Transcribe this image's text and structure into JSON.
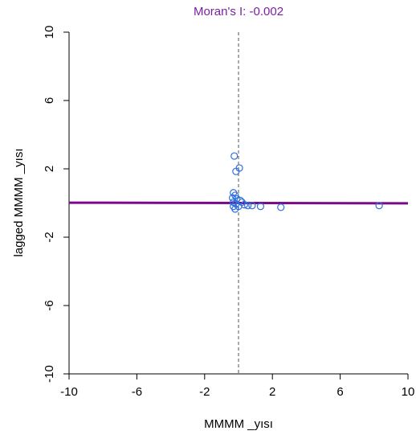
{
  "chart_data": {
    "type": "scatter",
    "title": "Moran's I: -0.002",
    "xlabel": "MMMM _yısı",
    "ylabel": "lagged MMMM _yısı",
    "xlim": [
      -10,
      10
    ],
    "ylim": [
      -10,
      10
    ],
    "xticks": [
      "-10",
      "-6",
      "-2",
      "2",
      "6",
      "10"
    ],
    "yticks": [
      "-10",
      "-6",
      "-2",
      "2",
      "6",
      "10"
    ],
    "grid": false,
    "colors": {
      "title": "#7b1fa2",
      "points": "#2f6fdf",
      "regression_line": "#7b0a8a",
      "vertical_reference": "#555555"
    },
    "regression_line": {
      "intercept": 0.0,
      "slope": -0.002
    },
    "vertical_reference_x": 0.0,
    "points": [
      {
        "x": -0.25,
        "y": 2.75
      },
      {
        "x": 0.05,
        "y": 2.05
      },
      {
        "x": -0.15,
        "y": 1.85
      },
      {
        "x": -0.3,
        "y": 0.6
      },
      {
        "x": -0.2,
        "y": 0.45
      },
      {
        "x": -0.35,
        "y": 0.3
      },
      {
        "x": -0.1,
        "y": 0.25
      },
      {
        "x": 0.1,
        "y": 0.15
      },
      {
        "x": -0.3,
        "y": 0.05
      },
      {
        "x": 0.2,
        "y": 0.05
      },
      {
        "x": -0.15,
        "y": -0.05
      },
      {
        "x": 0.35,
        "y": -0.1
      },
      {
        "x": -0.3,
        "y": -0.2
      },
      {
        "x": 0.0,
        "y": -0.2
      },
      {
        "x": 0.55,
        "y": -0.15
      },
      {
        "x": 0.8,
        "y": -0.15
      },
      {
        "x": -0.2,
        "y": -0.35
      },
      {
        "x": 1.3,
        "y": -0.2
      },
      {
        "x": 2.5,
        "y": -0.25
      },
      {
        "x": 8.3,
        "y": -0.15
      }
    ]
  }
}
